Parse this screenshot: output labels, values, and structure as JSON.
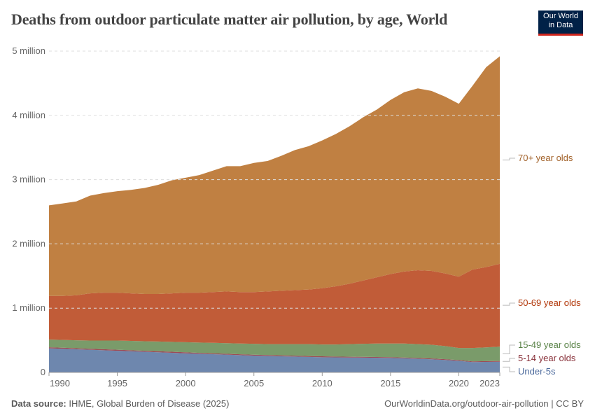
{
  "title": "Deaths from outdoor particulate matter air pollution, by age, World",
  "logo": {
    "line1": "Our World",
    "line2": "in Data"
  },
  "footer": {
    "source_label": "Data source:",
    "source": "IHME, Global Burden of Disease (2025)",
    "url": "OurWorldinData.org/outdoor-air-pollution | CC BY"
  },
  "chart_data": {
    "type": "area",
    "stacked": true,
    "title": "Deaths from outdoor particulate matter air pollution, by age, World",
    "ylim": [
      0,
      5000000
    ],
    "xlim": [
      1990,
      2023
    ],
    "grid": "horizontal dashed",
    "legend": "right, inline labels",
    "yticks": [
      {
        "v": 0,
        "label": "0"
      },
      {
        "v": 1000000,
        "label": "1 million"
      },
      {
        "v": 2000000,
        "label": "2 million"
      },
      {
        "v": 3000000,
        "label": "3 million"
      },
      {
        "v": 4000000,
        "label": "4 million"
      },
      {
        "v": 5000000,
        "label": "5 million"
      }
    ],
    "xticks": [
      {
        "v": 1990,
        "label": "1990"
      },
      {
        "v": 1995,
        "label": "1995"
      },
      {
        "v": 2000,
        "label": "2000"
      },
      {
        "v": 2005,
        "label": "2005"
      },
      {
        "v": 2010,
        "label": "2010"
      },
      {
        "v": 2015,
        "label": "2015"
      },
      {
        "v": 2020,
        "label": "2020"
      },
      {
        "v": 2023,
        "label": "2023"
      }
    ],
    "x": [
      1990,
      1991,
      1992,
      1993,
      1994,
      1995,
      1996,
      1997,
      1998,
      1999,
      2000,
      2001,
      2002,
      2003,
      2004,
      2005,
      2006,
      2007,
      2008,
      2009,
      2010,
      2011,
      2012,
      2013,
      2014,
      2015,
      2016,
      2017,
      2018,
      2019,
      2020,
      2021,
      2022,
      2023
    ],
    "series": [
      {
        "name": "Under-5s",
        "fill": "#6e87ae",
        "text": "#4c6a9c",
        "values": [
          375000,
          368000,
          360000,
          352000,
          345000,
          337000,
          329000,
          321000,
          313000,
          305000,
          297000,
          290000,
          283000,
          276000,
          268000,
          261000,
          256000,
          251000,
          246000,
          241000,
          236000,
          234000,
          232000,
          230000,
          228000,
          225000,
          219000,
          212000,
          204000,
          194000,
          180000,
          160000,
          163000,
          166000
        ]
      },
      {
        "name": "5-14 year olds",
        "fill": "#9c4b55",
        "text": "#883039",
        "values": [
          16000,
          16000,
          16000,
          16000,
          16000,
          16000,
          16000,
          16000,
          16000,
          16000,
          16000,
          14000,
          14000,
          14000,
          14000,
          14000,
          14000,
          14000,
          14000,
          14000,
          14000,
          12000,
          12000,
          12000,
          12000,
          12000,
          12000,
          12000,
          12000,
          12000,
          12000,
          12000,
          12000,
          12000
        ]
      },
      {
        "name": "15-49 year olds",
        "fill": "#7a9b6a",
        "text": "#578145",
        "values": [
          119000,
          121000,
          124000,
          127000,
          134000,
          142000,
          145000,
          148000,
          151000,
          154000,
          157000,
          161000,
          163000,
          165000,
          168000,
          170000,
          170000,
          175000,
          180000,
          185000,
          185000,
          189000,
          196000,
          203000,
          210000,
          213000,
          219000,
          216000,
          214000,
          204000,
          188000,
          208000,
          215000,
          222000
        ]
      },
      {
        "name": "50-69 year olds",
        "fill": "#c15c38",
        "text": "#b13507",
        "values": [
          680000,
          685000,
          700000,
          735000,
          745000,
          745000,
          740000,
          735000,
          740000,
          755000,
          770000,
          775000,
          790000,
          805000,
          800000,
          805000,
          820000,
          830000,
          840000,
          850000,
          875000,
          905000,
          940000,
          985000,
          1030000,
          1080000,
          1120000,
          1150000,
          1150000,
          1130000,
          1110000,
          1220000,
          1250000,
          1290000
        ]
      },
      {
        "name": "70+ year olds",
        "fill": "#c08042",
        "text": "#a2622a",
        "values": [
          1410000,
          1440000,
          1460000,
          1520000,
          1550000,
          1580000,
          1610000,
          1650000,
          1700000,
          1760000,
          1790000,
          1830000,
          1890000,
          1950000,
          1960000,
          2010000,
          2030000,
          2100000,
          2180000,
          2230000,
          2300000,
          2370000,
          2450000,
          2540000,
          2610000,
          2710000,
          2790000,
          2830000,
          2800000,
          2750000,
          2690000,
          2860000,
          3110000,
          3230000
        ]
      }
    ]
  }
}
